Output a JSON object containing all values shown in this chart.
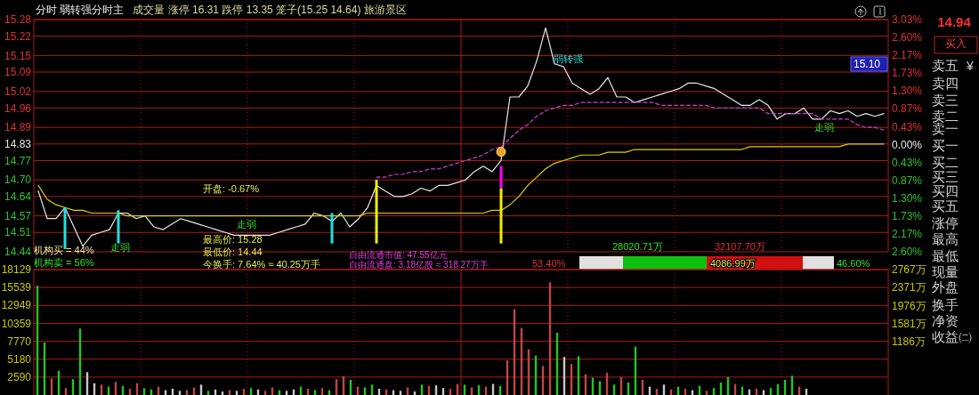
{
  "chart_data": [
    {
      "type": "line",
      "title": "分时 弱转强分时主",
      "subtitle": "成交量 涨停 16.31 跌停 13.35 笼子(15.25 14.64) 旅游景区",
      "categories": [
        null,
        null,
        null,
        null,
        null,
        null,
        null,
        null,
        null,
        null,
        null,
        null,
        null,
        null,
        null,
        null,
        null,
        null,
        null,
        null,
        null,
        null,
        null,
        null,
        null,
        null,
        null,
        null,
        null,
        null,
        null,
        null,
        null,
        null,
        null,
        null,
        null,
        null,
        null,
        null,
        null,
        null,
        null,
        null,
        null,
        null,
        null,
        null,
        null,
        null,
        null,
        null,
        null,
        null,
        null,
        null,
        null,
        null,
        null,
        null,
        null,
        null,
        null,
        null,
        null,
        null,
        null,
        null,
        null,
        null,
        null,
        null,
        null,
        null,
        null,
        null,
        null,
        null,
        null,
        null,
        null,
        null,
        null,
        null,
        null,
        null,
        null,
        null,
        null,
        null,
        null,
        null,
        null,
        null,
        null,
        null
      ],
      "ylim": [
        14.44,
        15.28
      ],
      "yticks": [
        15.28,
        15.22,
        15.15,
        15.09,
        15.02,
        14.96,
        14.89,
        14.83,
        14.77,
        {
          "value": 14.7,
          "label": "14.70"
        },
        14.64,
        14.57,
        14.51,
        14.44
      ],
      "y2lim": [
        -2.6,
        3.03
      ],
      "y2ticks": [
        {
          "value": 3.03,
          "label": "3.03%"
        },
        {
          "value": 2.6,
          "label": "2.60%"
        },
        {
          "value": 2.17,
          "label": "2.17%"
        },
        {
          "value": 1.73,
          "label": "1.73%"
        },
        {
          "value": 1.3,
          "label": "1.30%"
        },
        {
          "value": 0.87,
          "label": "0.87%"
        },
        {
          "value": 0.43,
          "label": "0.43%"
        },
        {
          "value": 0,
          "label": "0.00%"
        },
        {
          "value": -0.43,
          "label": "0.43%"
        },
        {
          "value": -0.87,
          "label": "0.87%"
        },
        {
          "value": -1.3,
          "label": "1.30%"
        },
        {
          "value": -1.73,
          "label": "1.73%"
        },
        {
          "value": -2.17,
          "label": "2.17%"
        },
        {
          "value": -2.6,
          "label": "2.60%"
        }
      ],
      "grid": true,
      "series": [
        {
          "color": "#e8e8e8",
          "values": [
            14.66,
            14.56,
            14.56,
            14.6,
            14.53,
            14.46,
            14.5,
            14.51,
            14.52,
            14.58,
            14.58,
            14.56,
            14.57,
            14.53,
            14.52,
            14.54,
            14.56,
            14.55,
            14.54,
            14.53,
            14.52,
            14.51,
            14.5,
            14.5,
            14.5,
            14.5,
            14.5,
            14.51,
            14.52,
            14.53,
            14.54,
            14.58,
            14.57,
            14.55,
            14.58,
            14.53,
            14.56,
            14.6,
            14.68,
            14.66,
            14.64,
            14.64,
            14.65,
            14.67,
            14.66,
            14.68,
            14.68,
            14.69,
            14.7,
            14.73,
            14.75,
            14.73,
            14.77,
            15.0,
            15.0,
            15.04,
            15.13,
            15.25,
            15.12,
            15.11,
            15.05,
            15.03,
            15.01,
            15.03,
            15.07,
            15.0,
            15.0,
            14.98,
            14.99,
            15.0,
            15.01,
            15.02,
            15.03,
            15.05,
            15.05,
            15.04,
            15.03,
            15.01,
            14.99,
            14.97,
            14.97,
            14.99,
            14.97,
            14.92,
            14.94,
            14.94,
            14.96,
            14.92,
            14.92,
            14.95,
            14.94,
            14.95,
            14.93,
            14.94,
            14.93,
            14.94
          ]
        },
        {
          "color": "#e0d000",
          "values": [
            14.68,
            14.63,
            14.61,
            14.6,
            14.59,
            14.59,
            14.58,
            14.58,
            14.58,
            14.58,
            14.57,
            14.57,
            14.57,
            14.57,
            14.57,
            14.57,
            14.57,
            14.57,
            14.57,
            14.57,
            14.57,
            14.57,
            14.57,
            14.57,
            14.57,
            14.57,
            14.57,
            14.57,
            14.57,
            14.57,
            14.57,
            14.57,
            14.57,
            14.57,
            14.57,
            14.57,
            14.57,
            14.58,
            14.58,
            14.58,
            14.58,
            14.58,
            14.58,
            14.58,
            14.58,
            14.58,
            14.58,
            14.58,
            14.58,
            14.58,
            14.58,
            14.59,
            14.59,
            14.61,
            14.64,
            14.68,
            14.71,
            14.74,
            14.76,
            14.77,
            14.78,
            14.79,
            14.79,
            14.79,
            14.8,
            14.8,
            14.8,
            14.81,
            14.81,
            14.81,
            14.81,
            14.81,
            14.81,
            14.81,
            14.81,
            14.81,
            14.81,
            14.81,
            14.81,
            14.81,
            14.82,
            14.82,
            14.82,
            14.82,
            14.82,
            14.82,
            14.82,
            14.82,
            14.82,
            14.82,
            14.82,
            14.83,
            14.83,
            14.83,
            14.83,
            14.83
          ]
        },
        {
          "color": "#d040d0",
          "line_style": "dashed",
          "values": [
            null,
            null,
            null,
            null,
            null,
            null,
            null,
            null,
            null,
            null,
            null,
            null,
            null,
            null,
            null,
            null,
            null,
            null,
            null,
            null,
            null,
            null,
            null,
            null,
            null,
            null,
            null,
            null,
            null,
            null,
            null,
            null,
            null,
            null,
            null,
            null,
            null,
            null,
            14.71,
            14.71,
            14.72,
            14.72,
            14.73,
            14.73,
            14.74,
            14.74,
            14.75,
            14.76,
            14.77,
            14.78,
            14.79,
            14.81,
            14.82,
            14.85,
            14.88,
            14.9,
            14.93,
            14.95,
            14.96,
            14.97,
            14.97,
            14.98,
            14.98,
            14.98,
            14.98,
            14.98,
            14.98,
            14.98,
            14.98,
            14.98,
            14.97,
            14.97,
            14.97,
            14.97,
            14.97,
            14.97,
            14.96,
            14.96,
            14.96,
            14.96,
            14.96,
            14.96,
            14.94,
            14.94,
            14.94,
            14.94,
            14.94,
            14.94,
            14.92,
            14.92,
            14.92,
            14.92,
            14.9,
            14.89,
            14.89,
            14.88
          ]
        },
        {
          "type": "bar",
          "base": [
            null,
            null,
            null,
            14.45,
            null,
            null,
            null,
            null,
            null,
            14.47,
            null,
            null,
            null,
            null,
            null,
            null,
            null,
            null,
            null,
            null,
            null,
            null,
            null,
            null,
            null,
            null,
            null,
            null,
            null,
            null,
            null,
            null,
            null,
            14.47,
            null,
            null,
            null,
            null,
            14.47,
            null,
            null,
            null,
            null,
            null,
            null,
            null,
            null,
            null,
            null,
            null,
            null,
            null,
            14.47,
            null,
            null,
            null,
            null,
            null,
            null,
            null,
            null,
            null,
            null,
            null,
            null,
            null,
            null,
            null,
            null,
            null,
            null,
            null,
            null,
            null,
            null,
            null,
            null,
            null,
            null,
            null,
            null,
            null,
            null,
            null,
            null,
            null,
            null,
            null,
            null,
            null,
            null,
            null,
            null,
            null,
            null,
            null
          ],
          "values": [
            null,
            null,
            null,
            0.15,
            null,
            null,
            null,
            null,
            null,
            0.12,
            null,
            null,
            null,
            null,
            null,
            null,
            null,
            null,
            null,
            null,
            null,
            null,
            null,
            null,
            null,
            null,
            null,
            null,
            null,
            null,
            null,
            null,
            null,
            0.11,
            null,
            null,
            null,
            null,
            0.23,
            null,
            null,
            null,
            null,
            null,
            null,
            null,
            null,
            null,
            null,
            null,
            null,
            null,
            0.2,
            null,
            null,
            null,
            null,
            null,
            null,
            null,
            null,
            null,
            null,
            null,
            null,
            null,
            null,
            null,
            null,
            null,
            null,
            null,
            null,
            null,
            null,
            null,
            null,
            null,
            null,
            null,
            null,
            null,
            null,
            null,
            null,
            null,
            null,
            null,
            null,
            null,
            null,
            null,
            null,
            null,
            null,
            null
          ],
          "colors": [
            null,
            null,
            null,
            "#20e0e0",
            null,
            null,
            null,
            null,
            null,
            "#20e0e0",
            null,
            null,
            null,
            null,
            null,
            null,
            null,
            null,
            null,
            null,
            null,
            null,
            null,
            null,
            null,
            null,
            null,
            null,
            null,
            null,
            null,
            null,
            null,
            "#20e0e0",
            null,
            null,
            null,
            null,
            "#f0f000",
            null,
            null,
            null,
            null,
            null,
            null,
            null,
            null,
            null,
            null,
            null,
            null,
            null,
            "#f0f000",
            null,
            null,
            null,
            null,
            null,
            null,
            null,
            null,
            null,
            null,
            null,
            null,
            null,
            null,
            null,
            null,
            null,
            null,
            null,
            null,
            null,
            null,
            null,
            null,
            null,
            null,
            null,
            null,
            null,
            null,
            null,
            null,
            null,
            null,
            null,
            null,
            null,
            null,
            null,
            null,
            null,
            null,
            null
          ]
        },
        {
          "type": "bar",
          "color": "#ff00ff",
          "base": [
            null,
            null,
            null,
            null,
            null,
            null,
            null,
            null,
            null,
            null,
            null,
            null,
            null,
            null,
            null,
            null,
            null,
            null,
            null,
            null,
            null,
            null,
            null,
            null,
            null,
            null,
            null,
            null,
            null,
            null,
            null,
            null,
            null,
            null,
            null,
            null,
            null,
            null,
            null,
            null,
            null,
            null,
            null,
            null,
            null,
            null,
            null,
            null,
            null,
            null,
            null,
            null,
            14.67,
            null,
            null,
            null,
            null,
            null,
            null,
            null,
            null,
            null,
            null,
            null,
            null,
            null,
            null,
            null,
            null,
            null,
            null,
            null,
            null,
            null,
            null,
            null,
            null,
            null,
            null,
            null,
            null,
            null,
            null,
            null,
            null,
            null,
            null,
            null,
            null,
            null,
            null,
            null,
            null,
            null,
            null,
            null
          ],
          "values": [
            null,
            null,
            null,
            null,
            null,
            null,
            null,
            null,
            null,
            null,
            null,
            null,
            null,
            null,
            null,
            null,
            null,
            null,
            null,
            null,
            null,
            null,
            null,
            null,
            null,
            null,
            null,
            null,
            null,
            null,
            null,
            null,
            null,
            null,
            null,
            null,
            null,
            null,
            null,
            null,
            null,
            null,
            null,
            null,
            null,
            null,
            null,
            null,
            null,
            null,
            null,
            null,
            0.08,
            null,
            null,
            null,
            null,
            null,
            null,
            null,
            null,
            null,
            null,
            null,
            null,
            null,
            null,
            null,
            null,
            null,
            null,
            null,
            null,
            null,
            null,
            null,
            null,
            null,
            null,
            null,
            null,
            null,
            null,
            null,
            null,
            null,
            null,
            null,
            null,
            null,
            null,
            null,
            null,
            null,
            null,
            null
          ]
        }
      ],
      "annotations": [
        "开盘: -0.67%",
        "最高价: 15.28",
        "最低价: 14.44",
        "今换手: 7.64% ≈ 40.25万手",
        "机构买 = 44%",
        "机构卖 = 56%",
        "自由流通市值: 47.55亿元",
        "自由流通盘: 3.18亿股 ≈ 318.27万手",
        "53.40%",
        "28020.71万",
        "32107.70万",
        "4086.99万",
        "46.60%",
        "弱转强",
        "走弱",
        "走弱",
        "走弱",
        "15.10"
      ]
    },
    {
      "type": "bar",
      "categories": [
        null,
        null,
        null,
        null,
        null,
        null,
        null,
        null,
        null,
        null,
        null,
        null,
        null,
        null,
        null,
        null,
        null,
        null,
        null,
        null,
        null,
        null,
        null,
        null,
        null,
        null,
        null,
        null,
        null,
        null,
        null,
        null,
        null,
        null,
        null,
        null,
        null,
        null,
        null,
        null,
        null,
        null,
        null,
        null,
        null,
        null,
        null,
        null,
        null,
        null,
        null,
        null,
        null,
        null,
        null,
        null,
        null,
        null,
        null,
        null,
        null,
        null,
        null,
        null,
        null,
        null,
        null,
        null,
        null,
        null,
        null,
        null,
        null,
        null,
        null,
        null,
        null,
        null,
        null,
        null,
        null,
        null,
        null,
        null,
        null,
        null,
        null,
        null,
        null,
        null,
        null,
        null,
        null,
        null,
        null,
        null,
        null,
        null,
        null,
        null,
        null,
        null,
        null,
        null,
        null,
        null,
        null,
        null,
        null,
        null,
        null,
        null,
        null,
        null,
        null,
        null,
        null,
        null,
        null,
        null
      ],
      "values": [
        15800,
        7600,
        2400,
        3500,
        1000,
        2300,
        9600,
        3300,
        1700,
        1500,
        1200,
        1900,
        1300,
        900,
        1700,
        1000,
        800,
        1200,
        700,
        900,
        600,
        700,
        1100,
        1500,
        600,
        800,
        500,
        700,
        600,
        900,
        1000,
        800,
        600,
        1100,
        700,
        600,
        800,
        1200,
        900,
        700,
        1000,
        700,
        2300,
        2700,
        2200,
        1200,
        1100,
        1500,
        900,
        800,
        700,
        600,
        1100,
        500,
        1500,
        1300,
        1400,
        1000,
        900,
        1600,
        1500,
        1100,
        1400,
        1200,
        1600,
        1300,
        5000,
        12400,
        9700,
        6600,
        5700,
        4200,
        16300,
        9000,
        5500,
        4500,
        5600,
        3000,
        2500,
        2000,
        3200,
        1500,
        2600,
        1800,
        7000,
        2200,
        1200,
        900,
        1500,
        800,
        1200,
        900,
        700,
        1300,
        600,
        1000,
        1800,
        2600,
        1600,
        1200,
        800,
        900,
        700,
        1000,
        1600,
        2200,
        2800,
        1200,
        900,
        null,
        null,
        null,
        null,
        null,
        null,
        null,
        null,
        null,
        null,
        null
      ],
      "colors": [
        "#22c522",
        "#22c522",
        "#c04545",
        "#22c522",
        "#c04545",
        "#22c522",
        "#22c522",
        "#c8c8c8",
        "#c8c8c8",
        "#c04545",
        "#22c522",
        "#c04545",
        "#22c522",
        "#c04545",
        "#c04545",
        "#22c522",
        "#22c522",
        "#c04545",
        "#c8c8c8",
        "#c8c8c8",
        "#c8c8c8",
        "#c04545",
        "#c04545",
        "#c8c8c8",
        "#22c522",
        "#c8c8c8",
        "#c8c8c8",
        "#c04545",
        "#c8c8c8",
        "#c04545",
        "#22c522",
        "#c8c8c8",
        "#c04545",
        "#c04545",
        "#22c522",
        "#c8c8c8",
        "#c8c8c8",
        "#22c522",
        "#c04545",
        "#22c522",
        "#c04545",
        "#22c522",
        "#c04545",
        "#c04545",
        "#22c522",
        "#c04545",
        "#22c522",
        "#22c522",
        "#c8c8c8",
        "#c04545",
        "#c8c8c8",
        "#c8c8c8",
        "#c04545",
        "#c8c8c8",
        "#22c522",
        "#c04545",
        "#c8c8c8",
        "#c8c8c8",
        "#c04545",
        "#c04545",
        "#22c522",
        "#c04545",
        "#22c522",
        "#c04545",
        "#c8c8c8",
        "#22c522",
        "#c04545",
        "#c04545",
        "#c04545",
        "#c04545",
        "#22c522",
        "#c04545",
        "#c04545",
        "#22c522",
        "#c8c8c8",
        "#c04545",
        "#22c522",
        "#c04545",
        "#22c522",
        "#22c522",
        "#c04545",
        "#22c522",
        "#c04545",
        "#22c522",
        "#22c522",
        "#c04545",
        "#c8c8c8",
        "#c04545",
        "#c8c8c8",
        "#c04545",
        "#22c522",
        "#c04545",
        "#c8c8c8",
        "#22c522",
        "#c04545",
        "#22c522",
        "#22c522",
        "#22c522",
        "#c04545",
        "#22c522",
        "#c8c8c8",
        "#c04545",
        "#c8c8c8",
        "#22c522",
        "#22c522",
        "#22c522",
        "#22c522",
        "#c04545",
        "#c8c8c8",
        null,
        null,
        null,
        null,
        null,
        null,
        null,
        null,
        null,
        null,
        null
      ],
      "ylim": [
        0,
        18129
      ],
      "yticks": [
        18129,
        15539,
        12949,
        10359,
        7770,
        5180,
        2590
      ],
      "y2lim": [
        0,
        2767
      ],
      "y2ticks": [
        {
          "value": 2767,
          "label": "2767万"
        },
        {
          "value": 2371,
          "label": "2371万"
        },
        {
          "value": 1976,
          "label": "1976万"
        },
        {
          "value": 1581,
          "label": "1581万"
        },
        {
          "value": 1186,
          "label": "1186万"
        }
      ],
      "grid": true
    },
    {
      "type": "other",
      "annotations": [
        "14.94",
        "买入",
        "卖五",
        "¥",
        "卖四",
        "卖三",
        "卖二",
        "卖一",
        "买一",
        "买二",
        "买三",
        "买四",
        "买五",
        "涨停",
        "最高",
        "最低",
        "现量",
        "外盘",
        "换手",
        "净资",
        "收益㈡"
      ]
    }
  ]
}
